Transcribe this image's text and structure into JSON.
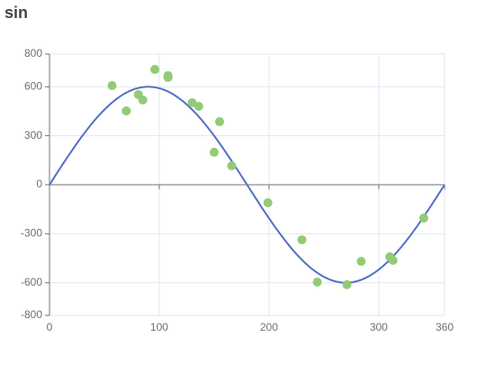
{
  "chart_data": {
    "type": "scatter",
    "title": "sin",
    "xlim": [
      0,
      360
    ],
    "xticks": [
      0,
      100,
      200,
      300,
      360
    ],
    "ylim": [
      -800,
      800
    ],
    "yticks": [
      -800,
      -600,
      -300,
      0,
      300,
      600,
      800
    ],
    "grid": true,
    "series": [
      {
        "type": "line",
        "color": "#5470c6",
        "x": [
          0,
          15,
          30,
          45,
          60,
          75,
          90,
          105,
          120,
          135,
          150,
          165,
          180,
          195,
          210,
          225,
          240,
          255,
          270,
          285,
          300,
          315,
          330,
          345,
          360
        ],
        "values": [
          0,
          155.3,
          300,
          424.3,
          519.6,
          579.6,
          600,
          579.6,
          519.6,
          424.3,
          300,
          155.3,
          0,
          -155.3,
          -300,
          -424.3,
          -519.6,
          -579.6,
          -600,
          -579.6,
          -519.6,
          -424.3,
          -300,
          -155.3,
          0
        ]
      },
      {
        "type": "scatter",
        "color": "#91cc75",
        "x": [
          57,
          70,
          81,
          85,
          96,
          108,
          108,
          130,
          136,
          155,
          150,
          166,
          199,
          230,
          244,
          271,
          284,
          310,
          313,
          341
        ],
        "values": [
          607,
          452,
          552,
          519,
          706,
          668,
          657,
          502,
          480,
          386,
          199,
          116,
          -110,
          -337,
          -596,
          -612,
          -469,
          -441,
          -463,
          -204
        ]
      }
    ]
  }
}
